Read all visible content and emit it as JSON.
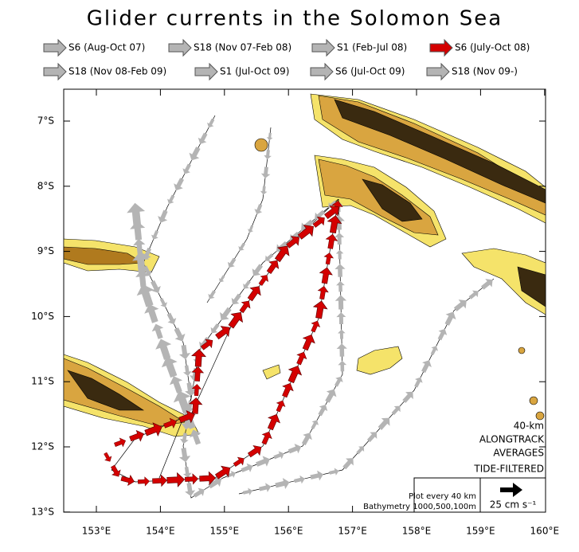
{
  "title": "Glider currents in the Solomon Sea",
  "legend": [
    {
      "label": "S6 (Aug-Oct 07)",
      "color": "#b4b4b4"
    },
    {
      "label": "S18 (Nov 07-Feb 08)",
      "color": "#b4b4b4"
    },
    {
      "label": "S1 (Feb-Jul 08)",
      "color": "#b4b4b4"
    },
    {
      "label": "S6 (July-Oct 08)",
      "color": "#d40000"
    },
    {
      "label": "S18 (Nov 08-Feb 09)",
      "color": "#b4b4b4"
    },
    {
      "label": "S1 (Jul-Oct 09)",
      "color": "#b4b4b4"
    },
    {
      "label": "S6 (Jul-Oct 09)",
      "color": "#b4b4b4"
    },
    {
      "label": "S18 (Nov 09-)",
      "color": "#b4b4b4"
    }
  ],
  "map": {
    "lat_labels": [
      "7°S",
      "8°S",
      "9°S",
      "10°S",
      "11°S",
      "12°S",
      "13°S"
    ],
    "lon_labels": [
      "153°E",
      "154°E",
      "155°E",
      "156°E",
      "157°E",
      "158°E",
      "159°E",
      "160°E"
    ]
  },
  "notes": {
    "averaging": [
      "40-km",
      "ALONGTRACK",
      "AVERAGES",
      "TIDE-FILTERED"
    ],
    "plot_every": "Plot every 40 km",
    "bathymetry": "Bathymetry 1000,500,100m",
    "scale": "25 cm s⁻¹"
  }
}
